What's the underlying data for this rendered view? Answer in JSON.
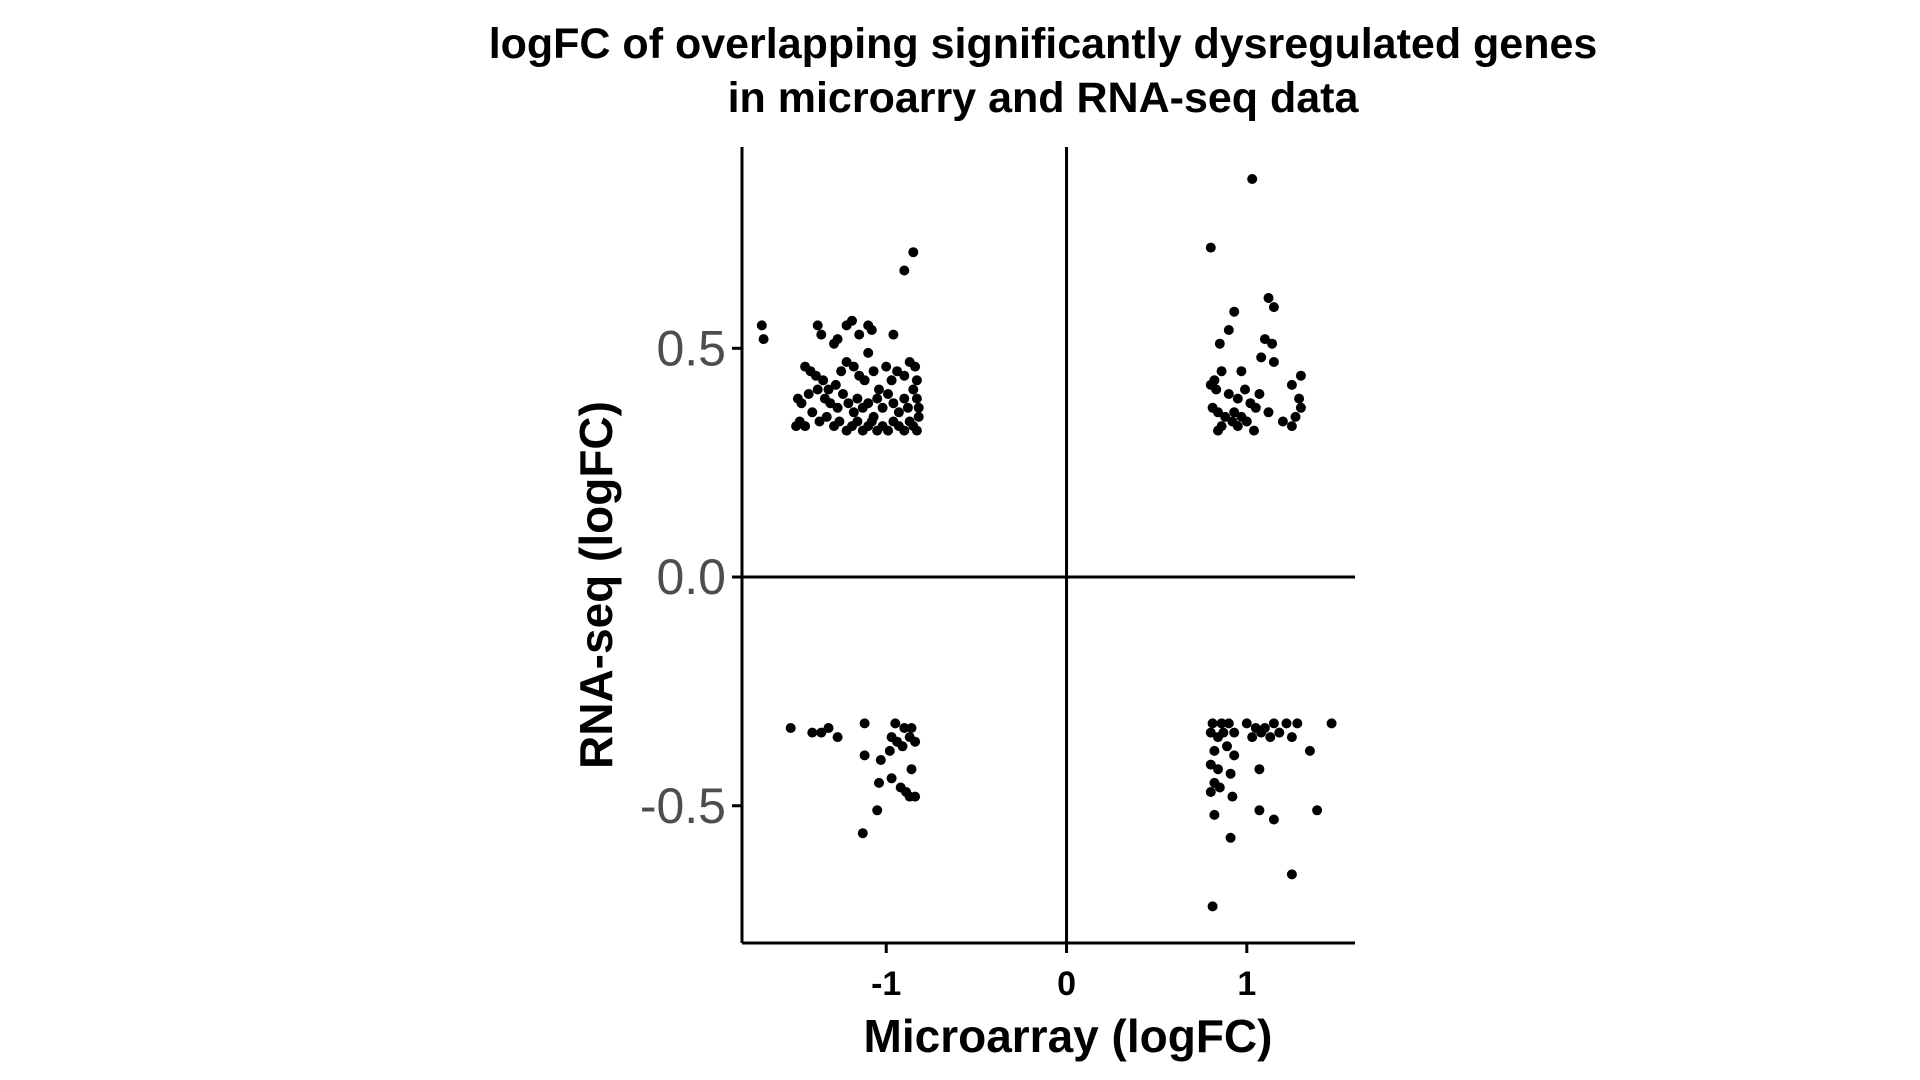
{
  "chart_data": {
    "type": "scatter",
    "title": [
      "logFC of overlapping significantly dysregulated genes",
      "in microarry and RNA-seq data"
    ],
    "xlabel": "Microarray (logFC)",
    "ylabel": "RNA-seq (logFC)",
    "xlim": [
      -1.8,
      1.6
    ],
    "ylim": [
      -0.8,
      0.94
    ],
    "xticks": [
      -1,
      0,
      1
    ],
    "xtick_labels": [
      "-1",
      "0",
      "1"
    ],
    "yticks": [
      -0.5,
      0.0,
      0.5
    ],
    "ytick_labels": [
      "-0.5",
      "0.0",
      "0.5"
    ],
    "reference_lines": {
      "x": 0,
      "y": 0
    },
    "grid": false,
    "legend": "none",
    "point_color": "#000000",
    "series": [
      {
        "points": [
          [
            -1.69,
            0.55
          ],
          [
            -1.68,
            0.52
          ],
          [
            -1.38,
            0.55
          ],
          [
            -1.36,
            0.53
          ],
          [
            -1.29,
            0.51
          ],
          [
            -1.27,
            0.52
          ],
          [
            -1.22,
            0.55
          ],
          [
            -1.19,
            0.56
          ],
          [
            -1.15,
            0.53
          ],
          [
            -1.1,
            0.55
          ],
          [
            -1.08,
            0.54
          ],
          [
            -0.96,
            0.53
          ],
          [
            -0.85,
            0.71
          ],
          [
            -0.9,
            0.67
          ],
          [
            -1.45,
            0.46
          ],
          [
            -1.42,
            0.45
          ],
          [
            -1.39,
            0.44
          ],
          [
            -1.35,
            0.43
          ],
          [
            -1.32,
            0.41
          ],
          [
            -1.28,
            0.42
          ],
          [
            -1.25,
            0.45
          ],
          [
            -1.22,
            0.47
          ],
          [
            -1.18,
            0.46
          ],
          [
            -1.15,
            0.44
          ],
          [
            -1.12,
            0.43
          ],
          [
            -1.1,
            0.49
          ],
          [
            -1.07,
            0.45
          ],
          [
            -1.04,
            0.41
          ],
          [
            -1.0,
            0.46
          ],
          [
            -0.97,
            0.43
          ],
          [
            -0.94,
            0.45
          ],
          [
            -0.9,
            0.44
          ],
          [
            -0.87,
            0.47
          ],
          [
            -0.84,
            0.46
          ],
          [
            -0.83,
            0.43
          ],
          [
            -1.49,
            0.39
          ],
          [
            -1.47,
            0.38
          ],
          [
            -1.43,
            0.4
          ],
          [
            -1.38,
            0.41
          ],
          [
            -1.34,
            0.39
          ],
          [
            -1.31,
            0.38
          ],
          [
            -1.27,
            0.37
          ],
          [
            -1.24,
            0.4
          ],
          [
            -1.21,
            0.38
          ],
          [
            -1.18,
            0.36
          ],
          [
            -1.16,
            0.39
          ],
          [
            -1.13,
            0.37
          ],
          [
            -1.1,
            0.38
          ],
          [
            -1.07,
            0.35
          ],
          [
            -1.05,
            0.39
          ],
          [
            -1.02,
            0.37
          ],
          [
            -0.99,
            0.4
          ],
          [
            -0.96,
            0.38
          ],
          [
            -0.93,
            0.36
          ],
          [
            -0.9,
            0.39
          ],
          [
            -0.88,
            0.37
          ],
          [
            -0.85,
            0.41
          ],
          [
            -0.83,
            0.39
          ],
          [
            -0.82,
            0.37
          ],
          [
            -1.5,
            0.33
          ],
          [
            -1.48,
            0.34
          ],
          [
            -1.45,
            0.33
          ],
          [
            -1.41,
            0.36
          ],
          [
            -1.37,
            0.34
          ],
          [
            -1.33,
            0.35
          ],
          [
            -1.29,
            0.33
          ],
          [
            -1.26,
            0.34
          ],
          [
            -1.22,
            0.32
          ],
          [
            -1.19,
            0.33
          ],
          [
            -1.16,
            0.34
          ],
          [
            -1.13,
            0.32
          ],
          [
            -1.1,
            0.33
          ],
          [
            -1.08,
            0.34
          ],
          [
            -1.05,
            0.32
          ],
          [
            -1.02,
            0.33
          ],
          [
            -0.99,
            0.32
          ],
          [
            -0.96,
            0.34
          ],
          [
            -0.93,
            0.33
          ],
          [
            -0.9,
            0.32
          ],
          [
            -0.87,
            0.34
          ],
          [
            -0.85,
            0.33
          ],
          [
            -0.83,
            0.32
          ],
          [
            -0.82,
            0.35
          ],
          [
            1.03,
            0.87
          ],
          [
            0.8,
            0.72
          ],
          [
            1.12,
            0.61
          ],
          [
            1.15,
            0.59
          ],
          [
            0.93,
            0.58
          ],
          [
            0.9,
            0.54
          ],
          [
            1.1,
            0.52
          ],
          [
            1.14,
            0.51
          ],
          [
            0.85,
            0.51
          ],
          [
            1.08,
            0.48
          ],
          [
            1.15,
            0.47
          ],
          [
            0.97,
            0.45
          ],
          [
            0.82,
            0.43
          ],
          [
            0.86,
            0.45
          ],
          [
            1.3,
            0.44
          ],
          [
            1.25,
            0.42
          ],
          [
            0.8,
            0.42
          ],
          [
            0.83,
            0.41
          ],
          [
            0.9,
            0.4
          ],
          [
            0.95,
            0.39
          ],
          [
            0.99,
            0.41
          ],
          [
            1.02,
            0.38
          ],
          [
            1.07,
            0.4
          ],
          [
            1.29,
            0.39
          ],
          [
            1.3,
            0.37
          ],
          [
            0.81,
            0.37
          ],
          [
            0.84,
            0.36
          ],
          [
            0.88,
            0.35
          ],
          [
            0.93,
            0.36
          ],
          [
            0.97,
            0.35
          ],
          [
            1.0,
            0.34
          ],
          [
            1.05,
            0.37
          ],
          [
            1.12,
            0.36
          ],
          [
            1.2,
            0.34
          ],
          [
            1.25,
            0.33
          ],
          [
            1.27,
            0.35
          ],
          [
            0.86,
            0.33
          ],
          [
            0.92,
            0.34
          ],
          [
            0.95,
            0.33
          ],
          [
            1.04,
            0.32
          ],
          [
            0.84,
            0.32
          ],
          [
            -1.53,
            -0.33
          ],
          [
            -1.41,
            -0.34
          ],
          [
            -1.36,
            -0.34
          ],
          [
            -1.32,
            -0.33
          ],
          [
            -1.27,
            -0.35
          ],
          [
            -1.12,
            -0.32
          ],
          [
            -0.95,
            -0.32
          ],
          [
            -0.9,
            -0.33
          ],
          [
            -0.86,
            -0.33
          ],
          [
            -0.97,
            -0.35
          ],
          [
            -0.94,
            -0.36
          ],
          [
            -0.91,
            -0.37
          ],
          [
            -0.87,
            -0.35
          ],
          [
            -0.84,
            -0.36
          ],
          [
            -0.98,
            -0.38
          ],
          [
            -1.12,
            -0.39
          ],
          [
            -1.03,
            -0.4
          ],
          [
            -0.86,
            -0.42
          ],
          [
            -0.97,
            -0.44
          ],
          [
            -1.04,
            -0.45
          ],
          [
            -0.92,
            -0.46
          ],
          [
            -0.89,
            -0.47
          ],
          [
            -0.87,
            -0.48
          ],
          [
            -0.84,
            -0.48
          ],
          [
            -1.05,
            -0.51
          ],
          [
            -1.13,
            -0.56
          ],
          [
            0.81,
            -0.32
          ],
          [
            0.86,
            -0.32
          ],
          [
            0.9,
            -0.32
          ],
          [
            1.0,
            -0.32
          ],
          [
            1.05,
            -0.33
          ],
          [
            1.1,
            -0.33
          ],
          [
            1.15,
            -0.32
          ],
          [
            1.22,
            -0.32
          ],
          [
            1.28,
            -0.32
          ],
          [
            1.47,
            -0.32
          ],
          [
            0.8,
            -0.34
          ],
          [
            0.84,
            -0.35
          ],
          [
            0.87,
            -0.34
          ],
          [
            0.93,
            -0.34
          ],
          [
            1.03,
            -0.35
          ],
          [
            1.08,
            -0.34
          ],
          [
            1.13,
            -0.35
          ],
          [
            1.18,
            -0.34
          ],
          [
            1.25,
            -0.35
          ],
          [
            1.35,
            -0.38
          ],
          [
            0.82,
            -0.38
          ],
          [
            0.89,
            -0.37
          ],
          [
            0.93,
            -0.39
          ],
          [
            1.07,
            -0.42
          ],
          [
            0.8,
            -0.41
          ],
          [
            0.84,
            -0.42
          ],
          [
            0.91,
            -0.43
          ],
          [
            0.82,
            -0.45
          ],
          [
            0.85,
            -0.46
          ],
          [
            0.8,
            -0.47
          ],
          [
            0.92,
            -0.48
          ],
          [
            1.07,
            -0.51
          ],
          [
            1.39,
            -0.51
          ],
          [
            1.15,
            -0.53
          ],
          [
            0.82,
            -0.52
          ],
          [
            0.91,
            -0.57
          ],
          [
            1.25,
            -0.65
          ],
          [
            0.81,
            -0.72
          ]
        ]
      }
    ]
  }
}
